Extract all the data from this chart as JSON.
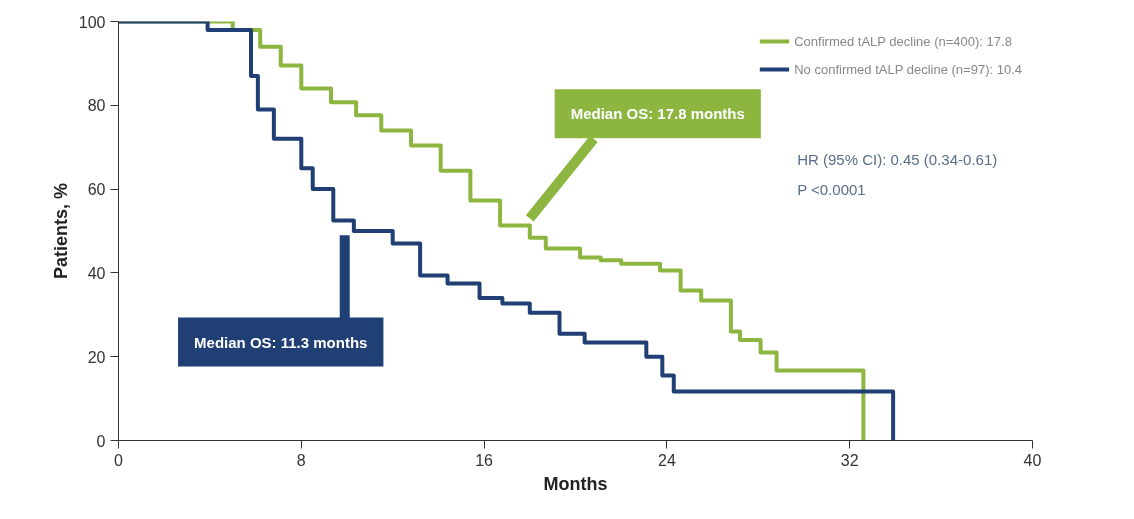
{
  "chart_data": {
    "type": "step",
    "xlabel": "Months",
    "ylabel": "Patients, %",
    "xlim": [
      0,
      40
    ],
    "xticks": [
      0,
      8,
      16,
      24,
      32,
      40
    ],
    "ylim": [
      0,
      100
    ],
    "yticks": [
      0,
      20,
      40,
      60,
      80,
      100
    ],
    "grid": false,
    "legend": "top right",
    "line_style": "solid",
    "series": [
      {
        "name": "Confirmed tALP decline (n=400): 17.8",
        "color": "#8db641",
        "x": [
          0,
          5,
          6.2,
          7.1,
          8,
          9.3,
          10.4,
          11.5,
          12.8,
          14.1,
          15.4,
          16.7,
          18,
          18.7,
          20.2,
          21.1,
          22,
          23.7,
          24.6,
          25.5,
          26.8,
          27.2,
          28.1,
          28.8,
          30.3,
          32.6
        ],
        "values": [
          100,
          98,
          94,
          89.5,
          84,
          80.7,
          77.6,
          74,
          70.4,
          64.4,
          57.3,
          51.3,
          48.4,
          45.8,
          43.7,
          43,
          42.2,
          40.6,
          35.8,
          33.4,
          26,
          24,
          21,
          16.7,
          16.7,
          0
        ]
      },
      {
        "name": "No confirmed tALP decline (n=97): 10.4",
        "color": "#1f3f75",
        "x": [
          0,
          3.9,
          5.8,
          6.1,
          6.8,
          8,
          8.5,
          9.4,
          10.3,
          12,
          13.2,
          14.4,
          15.8,
          16.8,
          18,
          19.3,
          20.4,
          23.1,
          23.8,
          24.3,
          33.9
        ],
        "values": [
          100,
          98,
          87,
          79,
          72,
          65,
          60,
          52.5,
          50,
          47,
          39.4,
          37.5,
          34,
          32.7,
          30.5,
          25.5,
          23.4,
          20,
          15.5,
          11.7,
          0
        ]
      }
    ],
    "annotations": [
      "Median OS: 17.8 months",
      "Median OS: 11.3 months",
      "HR (95% CI): 0.45 (0.34-0.61)",
      "P <0.0001"
    ]
  }
}
